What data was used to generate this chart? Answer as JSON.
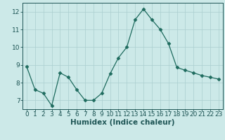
{
  "x": [
    0,
    1,
    2,
    3,
    4,
    5,
    6,
    7,
    8,
    9,
    10,
    11,
    12,
    13,
    14,
    15,
    16,
    17,
    18,
    19,
    20,
    21,
    22,
    23
  ],
  "y": [
    8.9,
    7.6,
    7.4,
    6.7,
    8.55,
    8.3,
    7.6,
    7.0,
    7.0,
    7.4,
    8.5,
    9.4,
    10.0,
    11.55,
    12.15,
    11.55,
    11.0,
    10.2,
    8.85,
    8.7,
    8.55,
    8.4,
    8.3,
    8.2
  ],
  "line_color": "#1e6b5e",
  "marker": "D",
  "marker_size": 2.5,
  "bg_color": "#cce9e8",
  "grid_color": "#aacfcf",
  "axis_bg": "#cce9e8",
  "xlabel": "Humidex (Indice chaleur)",
  "ylim": [
    6.5,
    12.5
  ],
  "xlim": [
    -0.5,
    23.5
  ],
  "yticks": [
    7,
    8,
    9,
    10,
    11,
    12
  ],
  "xticks": [
    0,
    1,
    2,
    3,
    4,
    5,
    6,
    7,
    8,
    9,
    10,
    11,
    12,
    13,
    14,
    15,
    16,
    17,
    18,
    19,
    20,
    21,
    22,
    23
  ],
  "tick_color": "#1e5555",
  "label_color": "#1e5555",
  "font_size": 6.5,
  "xlabel_fontsize": 7.5
}
